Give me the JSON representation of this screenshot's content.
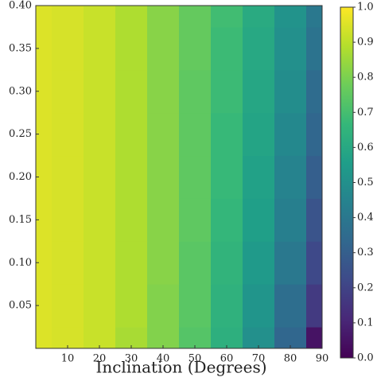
{
  "chart_data": {
    "type": "heatmap",
    "xlabel": "Inclination (Degrees)",
    "x": [
      0,
      10,
      20,
      30,
      40,
      50,
      60,
      70,
      80,
      90
    ],
    "y": [
      0,
      0.05,
      0.1,
      0.15,
      0.2,
      0.25,
      0.3,
      0.35,
      0.4
    ],
    "z": [
      [
        0.95,
        0.94,
        0.92,
        0.87,
        0.81,
        0.73,
        0.63,
        0.5,
        0.33,
        0.05
      ],
      [
        0.95,
        0.94,
        0.92,
        0.88,
        0.81,
        0.74,
        0.64,
        0.52,
        0.36,
        0.17
      ],
      [
        0.95,
        0.94,
        0.92,
        0.88,
        0.82,
        0.74,
        0.65,
        0.54,
        0.4,
        0.22
      ],
      [
        0.95,
        0.94,
        0.92,
        0.88,
        0.82,
        0.75,
        0.66,
        0.56,
        0.43,
        0.26
      ],
      [
        0.95,
        0.94,
        0.92,
        0.88,
        0.82,
        0.75,
        0.67,
        0.57,
        0.45,
        0.3
      ],
      [
        0.95,
        0.94,
        0.92,
        0.88,
        0.82,
        0.75,
        0.67,
        0.58,
        0.47,
        0.33
      ],
      [
        0.95,
        0.94,
        0.92,
        0.88,
        0.82,
        0.75,
        0.68,
        0.59,
        0.49,
        0.35
      ],
      [
        0.95,
        0.94,
        0.92,
        0.88,
        0.82,
        0.76,
        0.68,
        0.6,
        0.5,
        0.38
      ],
      [
        0.95,
        0.94,
        0.92,
        0.88,
        0.82,
        0.76,
        0.69,
        0.61,
        0.51,
        0.4
      ]
    ],
    "xlim": [
      0,
      90
    ],
    "xticks": [
      10,
      20,
      30,
      40,
      50,
      60,
      70,
      80,
      90
    ],
    "ylim": [
      0,
      0.4
    ],
    "yticks": [
      0.05,
      {
        "value": 0.1,
        "label": "0.10"
      },
      0.15,
      {
        "value": 0.2,
        "label": "0.20"
      },
      0.25,
      {
        "value": 0.3,
        "label": "0.30"
      },
      0.35,
      {
        "value": 0.4,
        "label": "0.40"
      }
    ],
    "clim": [
      0,
      1
    ],
    "cticks": [
      {
        "value": 0,
        "label": "0.0"
      },
      0.1,
      0.2,
      0.3,
      0.4,
      0.5,
      0.6,
      0.7,
      0.8,
      0.9,
      {
        "value": 1,
        "label": "1.0"
      }
    ],
    "colormap": "viridis"
  }
}
